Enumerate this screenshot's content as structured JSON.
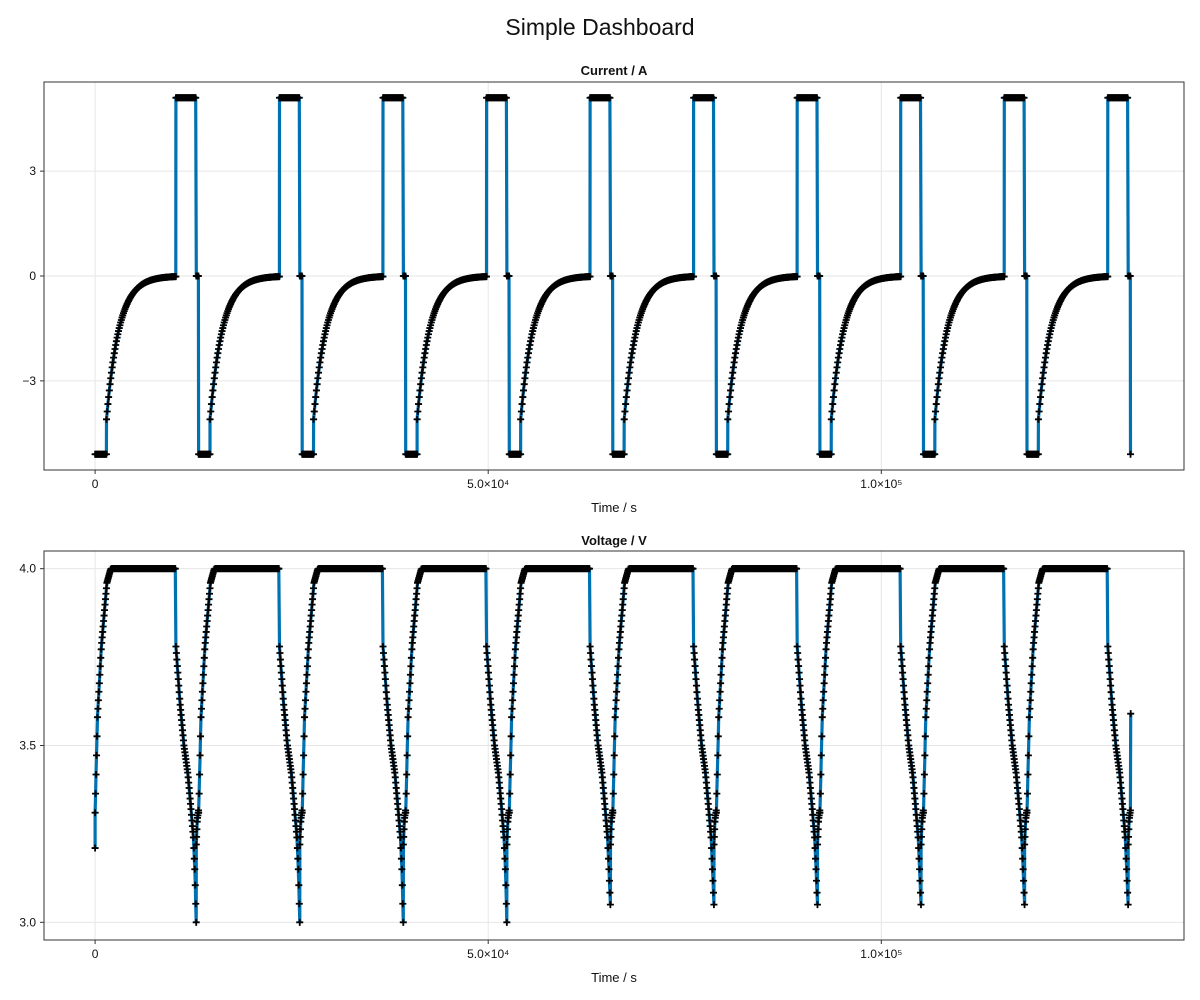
{
  "page": {
    "title": "Simple Dashboard"
  },
  "colors": {
    "line": "#0072b2",
    "marker": "#000000",
    "grid": "#e6e6e6",
    "frame": "#333333"
  },
  "chart_data": [
    {
      "type": "line",
      "title": "Current  /  A",
      "xlabel": "Time  /  s",
      "ylabel": "",
      "xlim": [
        -6500,
        138500
      ],
      "ylim": [
        -5.55,
        5.55
      ],
      "xticks": [
        0,
        50000,
        100000
      ],
      "xtick_labels": [
        "0",
        "5.0×10⁴",
        "1.0×10⁵"
      ],
      "yticks": [
        -3,
        0,
        3
      ],
      "ytick_labels": [
        "−3",
        "0",
        "3"
      ],
      "grid": true,
      "series": [
        {
          "marker": "+",
          "cycle_period": 13170,
          "num_cycles": 10,
          "cycle_template": {
            "t": [
              0,
              10,
              1440,
              1450,
              10270,
              10280,
              12860,
              12870,
              13170
            ],
            "value": [
              -5.1,
              -5.1,
              -5.1,
              -4.1,
              0.0,
              5.1,
              5.1,
              0.0,
              0.0
            ],
            "segment_shape": [
              "hold",
              "jump",
              "exp-relax",
              "jump",
              "hold",
              "jump",
              "hold",
              "jump"
            ]
          },
          "final_point": {
            "t": 131700,
            "value": -5.1
          }
        }
      ]
    },
    {
      "type": "line",
      "title": "Voltage  /  V",
      "xlabel": "Time  /  s",
      "ylabel": "",
      "xlim": [
        -6500,
        138500
      ],
      "ylim": [
        2.95,
        4.05
      ],
      "xticks": [
        0,
        50000,
        100000
      ],
      "xtick_labels": [
        "0",
        "5.0×10⁴",
        "1.0×10⁵"
      ],
      "yticks": [
        3.0,
        3.5,
        4.0
      ],
      "ytick_labels": [
        "3.0",
        "3.5",
        "4.0"
      ],
      "grid": true,
      "series": [
        {
          "marker": "+",
          "cycle_period": 13170,
          "num_cycles": 10,
          "first_point": {
            "t": 0,
            "value": 3.21
          },
          "charge_profile": {
            "t": [
              0,
              300,
              800,
              1500,
              2000
            ],
            "value": [
              3.31,
              3.58,
              3.78,
              3.96,
              4.0
            ]
          },
          "cv_hold": {
            "t_end": 10270,
            "value": 4.0
          },
          "discharge_profile": {
            "t": [
              10280,
              10800,
              11300,
              11800,
              12200,
              12500,
              12700,
              12860
            ],
            "value": [
              3.78,
              3.62,
              3.5,
              3.42,
              3.32,
              3.24,
              3.14,
              3.0
            ]
          },
          "rest_profile": {
            "t": [
              12870,
              13000,
              13170
            ],
            "value": [
              3.22,
              3.29,
              3.32
            ]
          },
          "final_point": {
            "t": 131720,
            "value": 3.59
          },
          "discharge_min_per_cycle": [
            3.0,
            3.0,
            3.0,
            3.0,
            3.05,
            3.05,
            3.05,
            3.05,
            3.05,
            3.05
          ]
        }
      ]
    }
  ]
}
